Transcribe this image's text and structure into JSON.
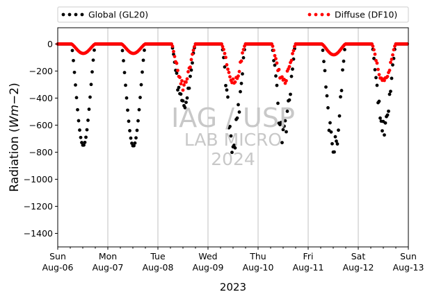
{
  "chart_data": {
    "type": "scatter",
    "xlabel": "2023",
    "ylabel": "Radiation ($Wm{-}2$)",
    "ylabel_parts": [
      "Radiation (",
      "Wm",
      "−2",
      ")"
    ],
    "xlim": [
      "Sun Aug-06",
      "Sun Aug-13"
    ],
    "ylim": [
      -1500,
      120
    ],
    "yticks": [
      0,
      -200,
      -400,
      -600,
      -800,
      -1000,
      -1200,
      -1400
    ],
    "xticks": [
      {
        "day": 0,
        "top": "Sun",
        "bottom": "Aug-06"
      },
      {
        "day": 1,
        "top": "Mon",
        "bottom": "Aug-07"
      },
      {
        "day": 2,
        "top": "Tue",
        "bottom": "Aug-08"
      },
      {
        "day": 3,
        "top": "Wed",
        "bottom": "Aug-09"
      },
      {
        "day": 4,
        "top": "Thu",
        "bottom": "Aug-10"
      },
      {
        "day": 5,
        "top": "Fri",
        "bottom": "Aug-11"
      },
      {
        "day": 6,
        "top": "Sat",
        "bottom": "Aug-12"
      },
      {
        "day": 7,
        "top": "Sun",
        "bottom": "Aug-13"
      }
    ],
    "grid": "vertical-at-day-ticks",
    "legend_placement": "top, above plot",
    "watermark": [
      "IAG / USP",
      "LAB MICRO",
      "2024"
    ],
    "series": [
      {
        "name": "Global (GL20)",
        "color": "#000000",
        "marker": "dot",
        "days": [
          {
            "day": 0,
            "peak": -750,
            "noise": 0
          },
          {
            "day": 1,
            "peak": -755,
            "noise": 0
          },
          {
            "day": 2,
            "peak": -470,
            "noise": 70
          },
          {
            "day": 3,
            "peak": -720,
            "noise": 130
          },
          {
            "day": 4,
            "peak": -670,
            "noise": 120
          },
          {
            "day": 5,
            "peak": -780,
            "noise": 100
          },
          {
            "day": 6,
            "peak": -620,
            "noise": 60
          }
        ]
      },
      {
        "name": "Diffuse (DF10)",
        "color": "#ff0000",
        "marker": "dot",
        "days": [
          {
            "day": 0,
            "peak": -70,
            "noise": 0
          },
          {
            "day": 1,
            "peak": -70,
            "noise": 0
          },
          {
            "day": 2,
            "peak": -310,
            "noise": 40
          },
          {
            "day": 3,
            "peak": -280,
            "noise": 40
          },
          {
            "day": 4,
            "peak": -270,
            "noise": 40
          },
          {
            "day": 5,
            "peak": -80,
            "noise": 0
          },
          {
            "day": 6,
            "peak": -280,
            "noise": 25
          }
        ]
      }
    ]
  }
}
